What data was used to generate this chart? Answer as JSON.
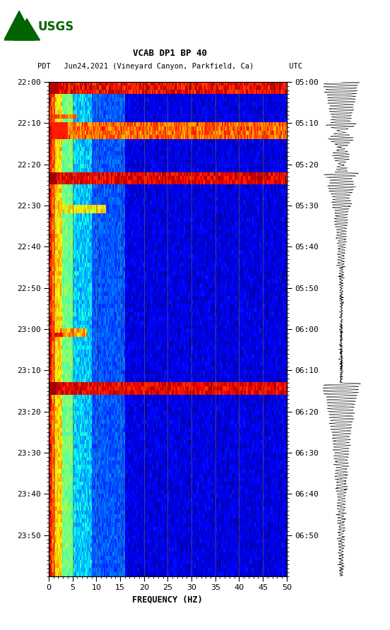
{
  "title_line1": "VCAB DP1 BP 40",
  "title_line2": "PDT   Jun24,2021 (Vineyard Canyon, Parkfield, Ca)        UTC",
  "xlabel": "FREQUENCY (HZ)",
  "freq_min": 0,
  "freq_max": 50,
  "freq_ticks": [
    0,
    5,
    10,
    15,
    20,
    25,
    30,
    35,
    40,
    45,
    50
  ],
  "freq_gridlines": [
    5,
    10,
    15,
    20,
    25,
    30,
    35,
    40,
    45
  ],
  "time_labels_left": [
    "22:00",
    "22:10",
    "22:20",
    "22:30",
    "22:40",
    "22:50",
    "23:00",
    "23:10",
    "23:20",
    "23:30",
    "23:40",
    "23:50"
  ],
  "time_labels_right": [
    "05:00",
    "05:10",
    "05:20",
    "05:30",
    "05:40",
    "05:50",
    "06:00",
    "06:10",
    "06:20",
    "06:30",
    "06:40",
    "06:50"
  ],
  "n_time_steps": 120,
  "n_freq_bins": 250,
  "background_color": "#ffffff",
  "colormap": "jet",
  "fig_width": 5.52,
  "fig_height": 8.92,
  "dpi": 100,
  "gridline_color": "#8B7500",
  "gridline_alpha": 0.6,
  "usgs_logo_color": "#006400"
}
